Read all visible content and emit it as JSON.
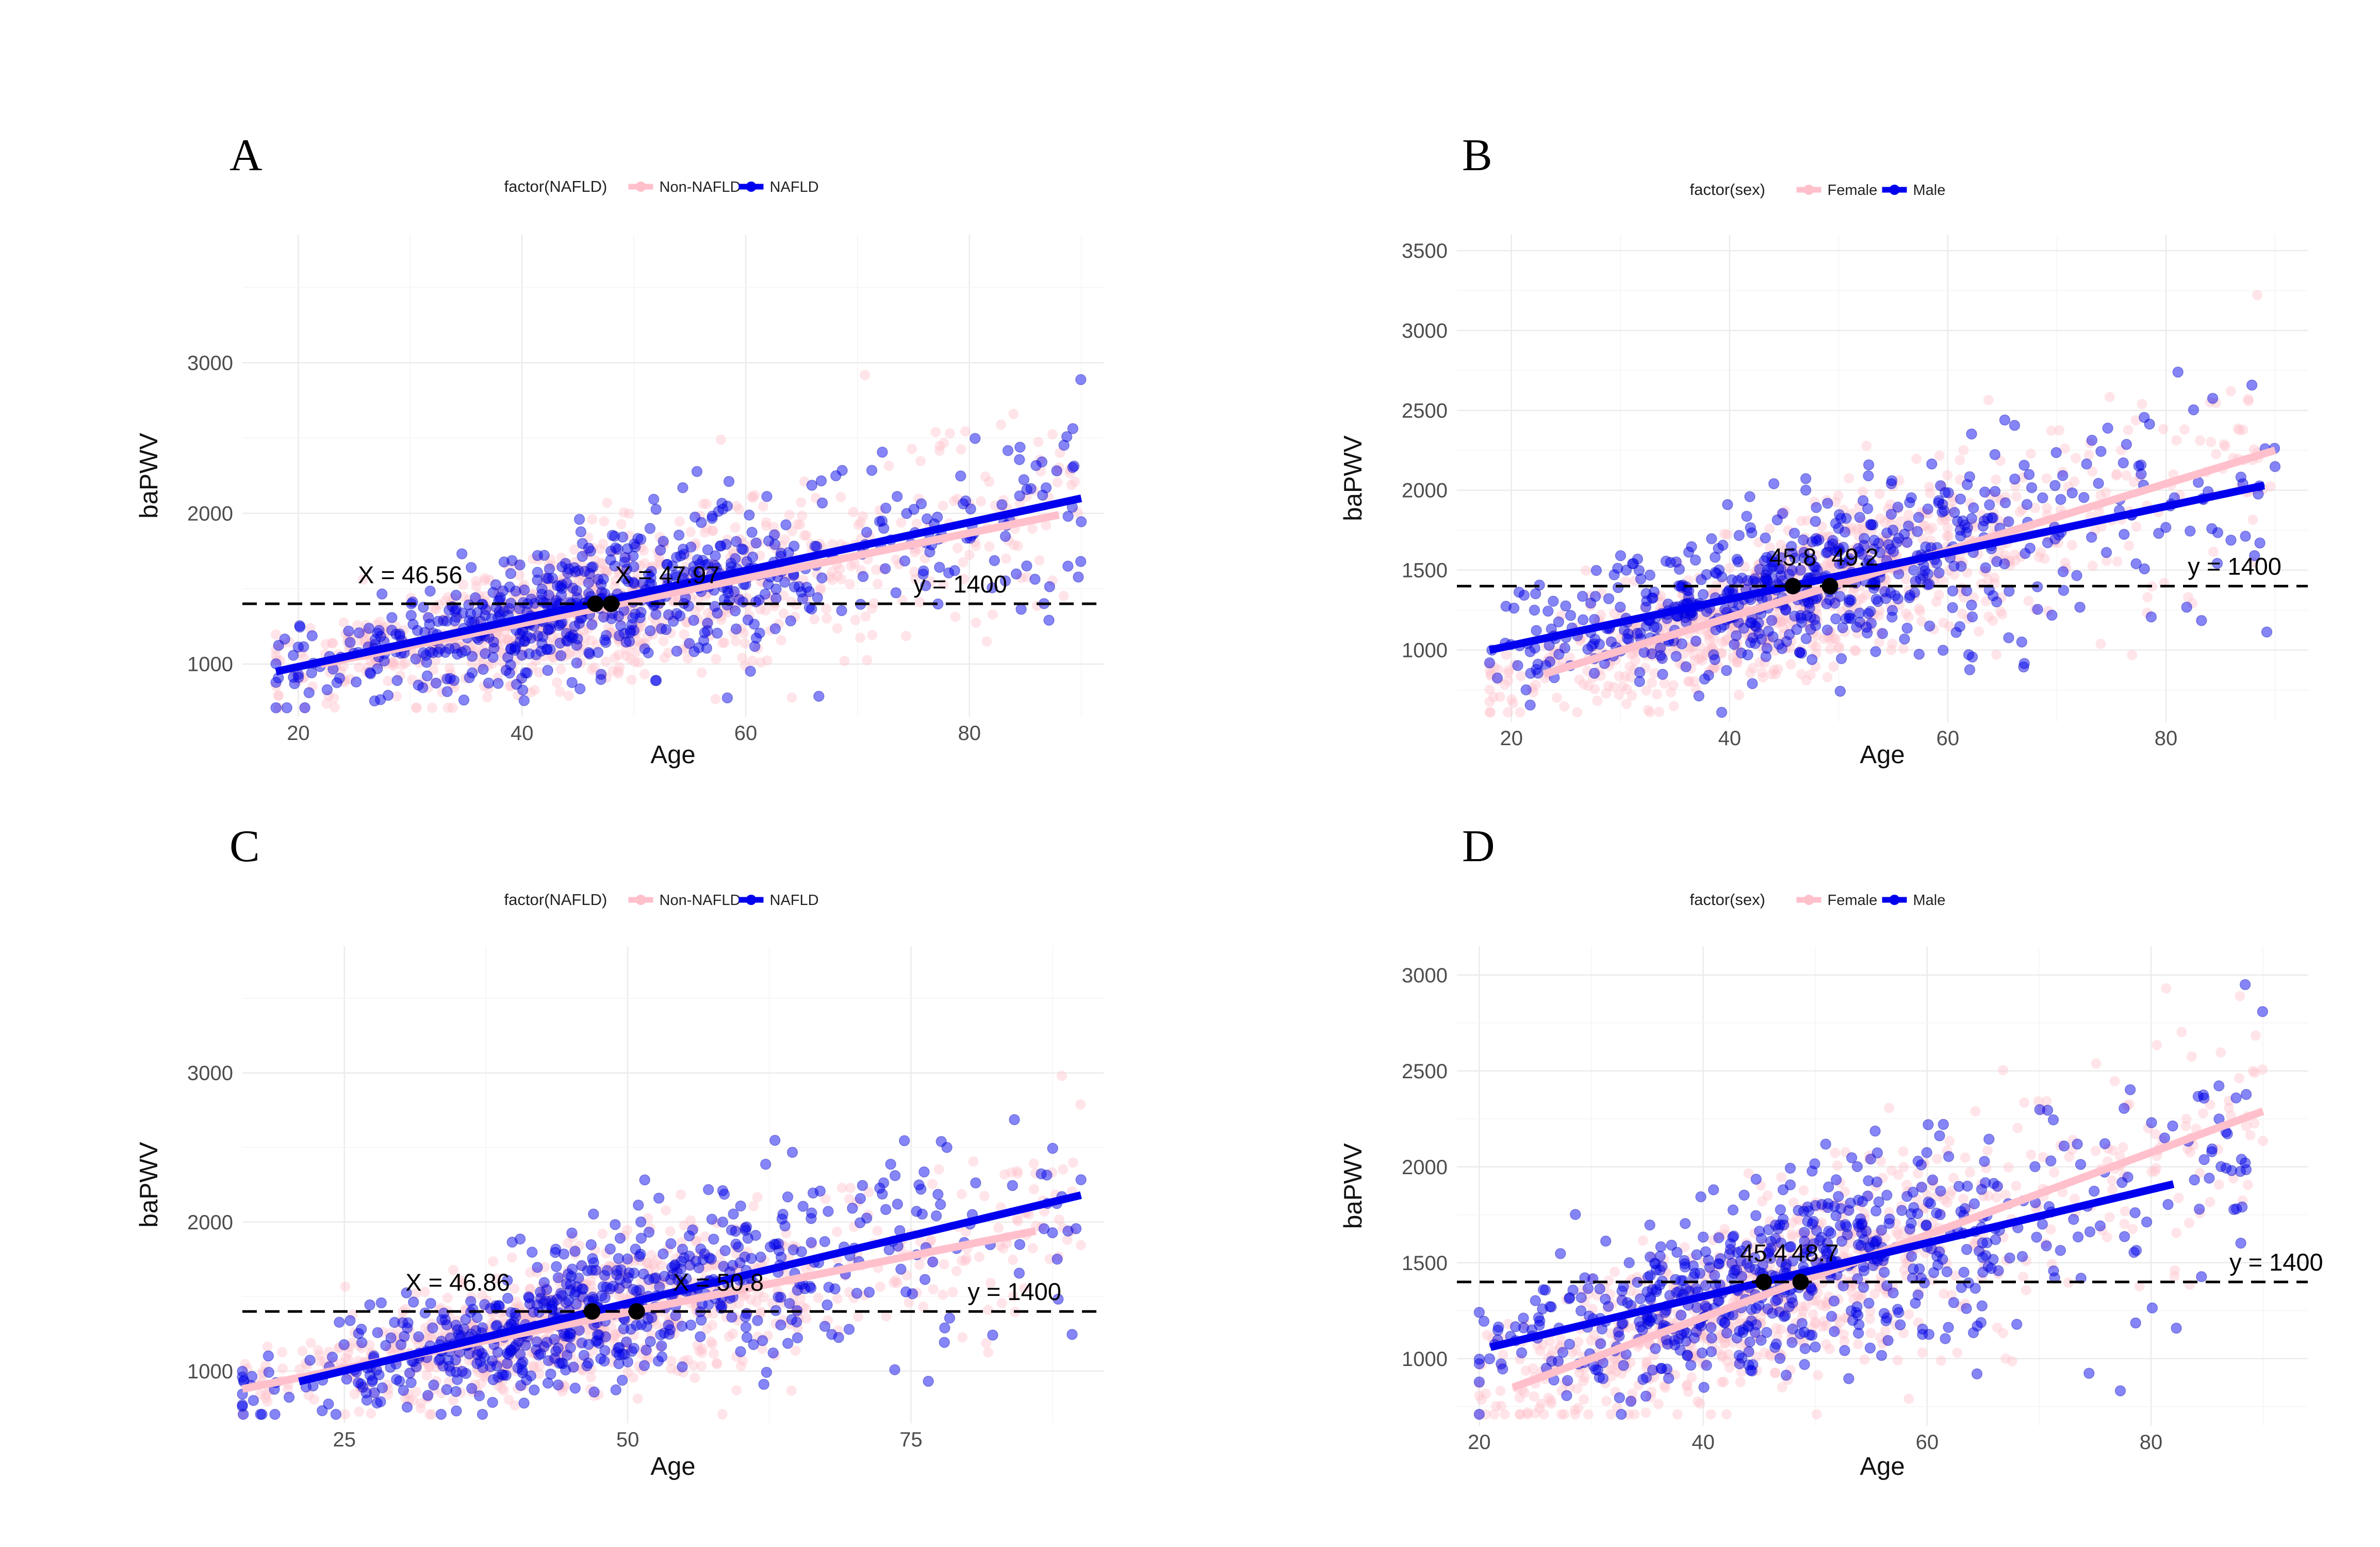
{
  "colors": {
    "pink": "#FFC0CB",
    "blue": "#0000EE",
    "ref_line": "#000000",
    "grid": "#EBEBEB"
  },
  "chart_data": [
    {
      "panel": "A",
      "type": "scatter",
      "legend_title": "factor(NAFLD)",
      "legend_placement": "top",
      "xlabel": "Age",
      "ylabel": "baPWV",
      "xlim": [
        15,
        92
      ],
      "ylim": [
        650,
        3850
      ],
      "x_ticks": [
        20,
        40,
        60,
        80
      ],
      "y_ticks": [
        1000,
        2000,
        3000
      ],
      "grid": true,
      "series": [
        {
          "name": "Non-NAFLD",
          "color": "pink",
          "fit": {
            "x0": 22,
            "y0": 1000,
            "x1": 88,
            "y1": 1990
          }
        },
        {
          "name": "NAFLD",
          "color": "blue",
          "fit": {
            "x0": 18,
            "y0": 950,
            "x1": 90,
            "y1": 2100
          }
        }
      ],
      "reference_line": {
        "y": 1400,
        "label": "y = 1400",
        "label_x": 75
      },
      "intersections": [
        {
          "x": 46.56,
          "y": 1400,
          "label": "X = 46.56",
          "label_x": 30
        },
        {
          "x": 47.97,
          "y": 1400,
          "label": "X = 47.97",
          "label_x": 53
        }
      ],
      "cloud": {
        "x_range": [
          18,
          90
        ],
        "min_x": 18
      }
    },
    {
      "panel": "B",
      "type": "scatter",
      "legend_title": "factor(sex)",
      "legend_placement": "top",
      "xlabel": "Age",
      "ylabel": "baPWV",
      "xlim": [
        15,
        93
      ],
      "ylim": [
        550,
        3600
      ],
      "x_ticks": [
        20,
        40,
        60,
        80
      ],
      "y_ticks": [
        1000,
        1500,
        2000,
        2500,
        3000,
        3500
      ],
      "grid": true,
      "series": [
        {
          "name": "Female",
          "color": "pink",
          "fit": {
            "x0": 23,
            "y0": 850,
            "x1": 90,
            "y1": 2250
          }
        },
        {
          "name": "Male",
          "color": "blue",
          "fit": {
            "x0": 18,
            "y0": 1000,
            "x1": 89,
            "y1": 2030
          }
        }
      ],
      "reference_line": {
        "y": 1400,
        "label": "y = 1400",
        "label_x": 82
      },
      "intersections": [
        {
          "x": 45.8,
          "y": 1400,
          "label": "45.8",
          "label_x": 45.8
        },
        {
          "x": 49.2,
          "y": 1400,
          "label": "49.2",
          "label_x": 51.5
        }
      ],
      "cloud": {
        "x_range": [
          18,
          90
        ],
        "min_x": 18
      }
    },
    {
      "panel": "C",
      "type": "scatter",
      "legend_title": "factor(NAFLD)",
      "legend_placement": "top",
      "xlabel": "Age",
      "ylabel": "baPWV",
      "xlim": [
        16,
        92
      ],
      "ylim": [
        650,
        3850
      ],
      "x_ticks": [
        25,
        50,
        75
      ],
      "y_ticks": [
        1000,
        2000,
        3000
      ],
      "grid": true,
      "series": [
        {
          "name": "Non-NAFLD",
          "color": "pink",
          "fit": {
            "x0": 16,
            "y0": 880,
            "x1": 86,
            "y1": 1940
          }
        },
        {
          "name": "NAFLD",
          "color": "blue",
          "fit": {
            "x0": 21,
            "y0": 930,
            "x1": 90,
            "y1": 2180
          }
        }
      ],
      "reference_line": {
        "y": 1400,
        "label": "y = 1400",
        "label_x": 80
      },
      "intersections": [
        {
          "x": 46.86,
          "y": 1400,
          "label": "X = 46.86",
          "label_x": 35
        },
        {
          "x": 50.8,
          "y": 1400,
          "label": "X = 50.8",
          "label_x": 58
        }
      ],
      "cloud": {
        "x_range": [
          16,
          90
        ],
        "min_x": 16
      }
    },
    {
      "panel": "D",
      "type": "scatter",
      "legend_title": "factor(sex)",
      "legend_placement": "top",
      "xlabel": "Age",
      "ylabel": "baPWV",
      "xlim": [
        18,
        94
      ],
      "ylim": [
        650,
        3150
      ],
      "x_ticks": [
        20,
        40,
        60,
        80
      ],
      "y_ticks": [
        1000,
        1500,
        2000,
        2500,
        3000
      ],
      "grid": true,
      "series": [
        {
          "name": "Female",
          "color": "pink",
          "fit": {
            "x0": 23,
            "y0": 850,
            "x1": 90,
            "y1": 2290
          }
        },
        {
          "name": "Male",
          "color": "blue",
          "fit": {
            "x0": 21,
            "y0": 1060,
            "x1": 82,
            "y1": 1910
          }
        }
      ],
      "reference_line": {
        "y": 1400,
        "label": "y = 1400",
        "label_x": 87
      },
      "intersections": [
        {
          "x": 45.4,
          "y": 1400,
          "label": "45.4",
          "label_x": 45.4
        },
        {
          "x": 48.7,
          "y": 1400,
          "label": "48.7",
          "label_x": 50
        }
      ],
      "cloud": {
        "x_range": [
          20,
          90
        ],
        "min_x": 20
      }
    }
  ]
}
